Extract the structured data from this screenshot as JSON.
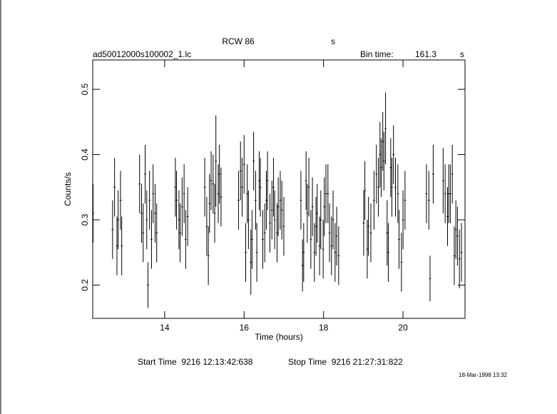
{
  "chart_data": {
    "type": "errorbar",
    "title": "RCW 86",
    "title_unit": "s",
    "file_name": "ad50012000s100002_1.lc",
    "bin_time_label": "Bin time:",
    "bin_time": "161.3",
    "bin_time_unit": "s",
    "xlabel": "Time (hours)",
    "ylabel": "Counts/s",
    "start_time": "Start Time  9216 12:13:42:638",
    "stop_time": "Stop Time  9216 21:27:31:822",
    "date_stamp": "18-Mar-1998 13:32",
    "color": "#000000",
    "xlim": [
      12.19,
      21.56
    ],
    "ylim": [
      0.149,
      0.545
    ],
    "xticks": [
      14,
      16,
      18,
      20
    ],
    "yticks": [
      0.2,
      0.3,
      0.4,
      0.5
    ],
    "x": [
      12.2,
      12.69,
      12.74,
      12.8,
      12.83,
      12.89,
      12.92,
      13.37,
      13.42,
      13.46,
      13.51,
      13.55,
      13.58,
      13.62,
      13.67,
      13.71,
      13.76,
      13.8,
      14.27,
      14.3,
      14.36,
      14.39,
      14.44,
      14.49,
      14.53,
      14.58,
      15.01,
      15.06,
      15.1,
      15.13,
      15.17,
      15.22,
      15.26,
      15.29,
      15.35,
      15.38,
      15.42,
      15.86,
      15.91,
      15.95,
      16.0,
      16.04,
      16.08,
      16.11,
      16.17,
      16.2,
      16.24,
      16.29,
      16.32,
      16.38,
      16.41,
      16.47,
      16.52,
      16.56,
      16.59,
      16.65,
      16.7,
      16.74,
      16.77,
      16.83,
      16.86,
      16.91,
      16.95,
      17.0,
      17.43,
      17.47,
      17.5,
      17.56,
      17.59,
      17.63,
      17.68,
      17.72,
      17.77,
      17.81,
      17.84,
      17.9,
      17.93,
      17.99,
      18.02,
      18.06,
      18.11,
      18.15,
      18.2,
      18.24,
      18.29,
      18.33,
      18.38,
      19.01,
      19.04,
      19.1,
      19.13,
      19.19,
      19.27,
      19.33,
      19.38,
      19.42,
      19.45,
      19.49,
      19.52,
      19.56,
      19.6,
      19.63,
      19.69,
      19.72,
      19.76,
      19.81,
      19.87,
      19.9,
      19.96,
      20.0,
      20.05,
      20.59,
      20.65,
      20.68,
      20.76,
      21.01,
      21.06,
      21.12,
      21.15,
      21.19,
      21.24,
      21.29,
      21.33,
      21.37,
      21.42,
      21.47
    ],
    "values": [
      0.31,
      0.285,
      0.35,
      0.26,
      0.3,
      0.33,
      0.26,
      0.355,
      0.31,
      0.28,
      0.37,
      0.3,
      0.2,
      0.33,
      0.27,
      0.34,
      0.31,
      0.28,
      0.35,
      0.33,
      0.3,
      0.28,
      0.32,
      0.34,
      0.27,
      0.305,
      0.35,
      0.29,
      0.245,
      0.325,
      0.36,
      0.355,
      0.31,
      0.39,
      0.34,
      0.37,
      0.335,
      0.33,
      0.375,
      0.35,
      0.385,
      0.25,
      0.34,
      0.3,
      0.235,
      0.27,
      0.39,
      0.33,
      0.25,
      0.36,
      0.35,
      0.27,
      0.28,
      0.33,
      0.36,
      0.295,
      0.315,
      0.35,
      0.3,
      0.28,
      0.32,
      0.33,
      0.315,
      0.29,
      0.33,
      0.23,
      0.25,
      0.36,
      0.31,
      0.35,
      0.27,
      0.32,
      0.25,
      0.29,
      0.31,
      0.26,
      0.3,
      0.255,
      0.32,
      0.34,
      0.34,
      0.28,
      0.26,
      0.3,
      0.25,
      0.275,
      0.245,
      0.295,
      0.345,
      0.255,
      0.29,
      0.28,
      0.33,
      0.37,
      0.35,
      0.4,
      0.38,
      0.42,
      0.39,
      0.44,
      0.28,
      0.25,
      0.38,
      0.35,
      0.4,
      0.35,
      0.34,
      0.27,
      0.235,
      0.3,
      0.33,
      0.34,
      0.33,
      0.21,
      0.37,
      0.36,
      0.34,
      0.305,
      0.34,
      0.34,
      0.37,
      0.245,
      0.285,
      0.275,
      0.24,
      0.25
    ],
    "errors": [
      0.045,
      0.045,
      0.045,
      0.045,
      0.045,
      0.045,
      0.045,
      0.045,
      0.045,
      0.045,
      0.045,
      0.045,
      0.035,
      0.045,
      0.045,
      0.045,
      0.045,
      0.045,
      0.045,
      0.045,
      0.045,
      0.045,
      0.045,
      0.045,
      0.045,
      0.045,
      0.045,
      0.045,
      0.045,
      0.045,
      0.045,
      0.045,
      0.045,
      0.07,
      0.045,
      0.045,
      0.045,
      0.045,
      0.045,
      0.045,
      0.045,
      0.045,
      0.045,
      0.045,
      0.05,
      0.045,
      0.045,
      0.045,
      0.045,
      0.045,
      0.045,
      0.045,
      0.045,
      0.045,
      0.045,
      0.045,
      0.045,
      0.045,
      0.045,
      0.045,
      0.045,
      0.045,
      0.045,
      0.045,
      0.045,
      0.04,
      0.045,
      0.045,
      0.045,
      0.045,
      0.045,
      0.045,
      0.045,
      0.045,
      0.045,
      0.045,
      0.045,
      0.045,
      0.045,
      0.045,
      0.045,
      0.045,
      0.045,
      0.045,
      0.045,
      0.045,
      0.045,
      0.05,
      0.045,
      0.045,
      0.045,
      0.045,
      0.045,
      0.045,
      0.045,
      0.05,
      0.045,
      0.045,
      0.045,
      0.055,
      0.05,
      0.045,
      0.045,
      0.045,
      0.045,
      0.045,
      0.045,
      0.045,
      0.045,
      0.045,
      0.045,
      0.045,
      0.045,
      0.035,
      0.045,
      0.05,
      0.045,
      0.045,
      0.045,
      0.045,
      0.045,
      0.045,
      0.045,
      0.045,
      0.045,
      0.045
    ]
  }
}
